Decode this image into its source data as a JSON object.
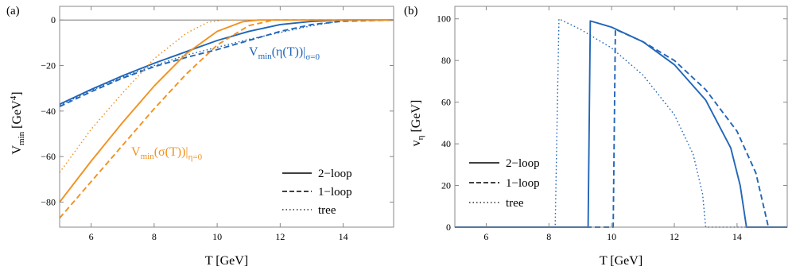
{
  "colors": {
    "blue": "#2166b8",
    "orange": "#f2911f",
    "frame": "#888888",
    "zero_line": "#666666"
  },
  "chart_data": [
    {
      "type": "line",
      "panel_label": "(a)",
      "xlabel": "T [GeV]",
      "ylabel": "V",
      "ylabel_sub": "min",
      "ylabel_rest": " [GeV",
      "ylabel_sup": "4",
      "ylabel_end": "]",
      "xlim": [
        5,
        15.6
      ],
      "ylim": [
        -91,
        6
      ],
      "xticks": [
        6,
        8,
        10,
        12,
        14
      ],
      "yticks": [
        0,
        -20,
        -40,
        -60,
        -80
      ],
      "zero_line": true,
      "annotations": {
        "eta": {
          "base": "V",
          "sub": "min",
          "mid": "(η(T))|",
          "cond": "σ=0"
        },
        "sigma": {
          "base": "V",
          "sub": "min",
          "mid": "(σ(T))|",
          "cond": "η=0"
        }
      },
      "legend": {
        "placement": "bottom-right",
        "entries": [
          {
            "label": "2−loop",
            "dash": "solid"
          },
          {
            "label": "1−loop",
            "dash": "dashed"
          },
          {
            "label": "tree",
            "dash": "dotted"
          }
        ]
      },
      "series": [
        {
          "group": "eta",
          "loop": "2-loop",
          "color": "blue",
          "dash": "solid",
          "points": [
            [
              5,
              -37
            ],
            [
              6,
              -30.5
            ],
            [
              7,
              -24.5
            ],
            [
              8,
              -19
            ],
            [
              9,
              -14
            ],
            [
              10,
              -9
            ],
            [
              11,
              -5
            ],
            [
              12,
              -2
            ],
            [
              13,
              -0.6
            ],
            [
              14,
              0
            ],
            [
              15.6,
              0
            ]
          ]
        },
        {
          "group": "eta",
          "loop": "1-loop",
          "color": "blue",
          "dash": "dashed",
          "points": [
            [
              5,
              -38
            ],
            [
              6,
              -31.5
            ],
            [
              7,
              -25.5
            ],
            [
              8,
              -20.5
            ],
            [
              9,
              -16.5
            ],
            [
              10,
              -13
            ],
            [
              11,
              -9
            ],
            [
              12,
              -5
            ],
            [
              13,
              -2
            ],
            [
              14,
              -0.5
            ],
            [
              15.6,
              0
            ]
          ]
        },
        {
          "group": "eta",
          "loop": "tree",
          "color": "blue",
          "dash": "dotted",
          "points": [
            [
              5,
              -37.5
            ],
            [
              6,
              -31
            ],
            [
              7,
              -25
            ],
            [
              8,
              -20
            ],
            [
              9,
              -15.5
            ],
            [
              10,
              -12
            ],
            [
              11,
              -8.5
            ],
            [
              12,
              -5.5
            ],
            [
              13,
              -2.5
            ],
            [
              14,
              -0.3
            ],
            [
              15.6,
              0
            ]
          ]
        },
        {
          "group": "sigma",
          "loop": "2-loop",
          "color": "orange",
          "dash": "solid",
          "points": [
            [
              5,
              -80
            ],
            [
              6,
              -62
            ],
            [
              7,
              -45
            ],
            [
              8,
              -29
            ],
            [
              9,
              -15
            ],
            [
              10,
              -5
            ],
            [
              10.8,
              -0.8
            ],
            [
              11.3,
              0
            ],
            [
              15.6,
              0
            ]
          ]
        },
        {
          "group": "sigma",
          "loop": "1-loop",
          "color": "orange",
          "dash": "dashed",
          "points": [
            [
              5,
              -87
            ],
            [
              6,
              -71
            ],
            [
              7,
              -55
            ],
            [
              8,
              -39
            ],
            [
              9,
              -24
            ],
            [
              10,
              -11
            ],
            [
              11,
              -2.5
            ],
            [
              11.8,
              0
            ],
            [
              15.6,
              0
            ]
          ]
        },
        {
          "group": "sigma",
          "loop": "tree",
          "color": "orange",
          "dash": "dotted",
          "points": [
            [
              5,
              -67
            ],
            [
              6,
              -48
            ],
            [
              7,
              -32
            ],
            [
              8,
              -17
            ],
            [
              9,
              -6
            ],
            [
              9.7,
              -1
            ],
            [
              10.2,
              0
            ],
            [
              15.6,
              0
            ]
          ]
        }
      ]
    },
    {
      "type": "line",
      "panel_label": "(b)",
      "xlabel": "T [GeV]",
      "ylabel": "v",
      "ylabel_sub": "η",
      "ylabel_rest": " [GeV]",
      "xlim": [
        5,
        15.6
      ],
      "ylim": [
        0,
        106
      ],
      "xticks": [
        6,
        8,
        10,
        12,
        14
      ],
      "yticks": [
        0,
        20,
        40,
        60,
        80,
        100
      ],
      "legend": {
        "placement": "bottom-left",
        "entries": [
          {
            "label": "2−loop",
            "dash": "solid"
          },
          {
            "label": "1−loop",
            "dash": "dashed"
          },
          {
            "label": "tree",
            "dash": "dotted"
          }
        ]
      },
      "series": [
        {
          "loop": "2-loop",
          "color": "blue",
          "dash": "solid",
          "points": [
            [
              5,
              0
            ],
            [
              9.25,
              0
            ],
            [
              9.32,
              99
            ],
            [
              10,
              96
            ],
            [
              11,
              89
            ],
            [
              12,
              78
            ],
            [
              13,
              61
            ],
            [
              13.8,
              38
            ],
            [
              14.1,
              20
            ],
            [
              14.3,
              0
            ],
            [
              15.6,
              0
            ]
          ]
        },
        {
          "loop": "1-loop",
          "color": "blue",
          "dash": "dashed",
          "points": [
            [
              5,
              0
            ],
            [
              10.05,
              0
            ],
            [
              10.12,
              95
            ],
            [
              11,
              89
            ],
            [
              12,
              80
            ],
            [
              13,
              66
            ],
            [
              14,
              46
            ],
            [
              14.6,
              26
            ],
            [
              15,
              0
            ],
            [
              15.6,
              0
            ]
          ]
        },
        {
          "loop": "tree",
          "color": "blue",
          "dash": "dotted",
          "points": [
            [
              5,
              0
            ],
            [
              8.2,
              0
            ],
            [
              8.32,
              100
            ],
            [
              9,
              95
            ],
            [
              10,
              86
            ],
            [
              11,
              73
            ],
            [
              12,
              54
            ],
            [
              12.6,
              35
            ],
            [
              12.9,
              16
            ],
            [
              13,
              0
            ],
            [
              15.6,
              0
            ]
          ]
        }
      ]
    }
  ]
}
